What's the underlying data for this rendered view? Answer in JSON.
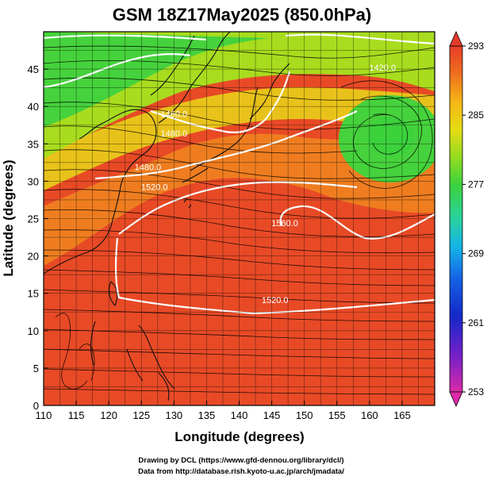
{
  "title": "GSM 18Z17May2025 (850.0hPa)",
  "x_axis": {
    "label": "Longitude (degrees)",
    "range": [
      110,
      170
    ],
    "ticks": [
      "110",
      "115",
      "120",
      "125",
      "130",
      "135",
      "140",
      "145",
      "150",
      "155",
      "160",
      "165"
    ],
    "tick_values": [
      110,
      115,
      120,
      125,
      130,
      135,
      140,
      145,
      150,
      155,
      160,
      165
    ]
  },
  "y_axis": {
    "label": "Latitude  (degrees)",
    "range": [
      0,
      50
    ],
    "ticks": [
      "0",
      "5",
      "10",
      "15",
      "20",
      "25",
      "30",
      "35",
      "40",
      "45"
    ],
    "tick_values": [
      0,
      5,
      10,
      15,
      20,
      25,
      30,
      35,
      40,
      45
    ]
  },
  "colorbar": {
    "range": [
      253,
      293
    ],
    "ticks": [
      "293",
      "285",
      "277",
      "269",
      "261",
      "253"
    ],
    "tick_values": [
      293,
      285,
      277,
      269,
      261,
      253
    ],
    "colors": [
      "#dc2aa8",
      "#7a20c8",
      "#1428c8",
      "#1464e6",
      "#14b4e6",
      "#28d2a0",
      "#3cd23c",
      "#96dc1e",
      "#e6dc14",
      "#f5b414",
      "#f06e1e",
      "#e63c28"
    ]
  },
  "contours": {
    "variable": "geopotential height (m)",
    "labels": [
      {
        "text": "1420.0",
        "lon": 162.0,
        "lat": 44.8
      },
      {
        "text": "1460.0",
        "lon": 130.0,
        "lat": 38.6
      },
      {
        "text": "1480.0",
        "lon": 130.0,
        "lat": 36.0
      },
      {
        "text": "1480.0",
        "lon": 126.0,
        "lat": 31.5
      },
      {
        "text": "1520.0",
        "lon": 127.0,
        "lat": 28.8
      },
      {
        "text": "1560.0",
        "lon": 147.0,
        "lat": 24.0
      },
      {
        "text": "1520.0",
        "lon": 145.5,
        "lat": 13.7
      }
    ]
  },
  "credits": {
    "line1": "Drawing by DCL (https://www.gfd-dennou.org/library/dcl/)",
    "line2": "Data from http://database.rish.kyoto-u.ac.jp/arch/jmadata/"
  }
}
